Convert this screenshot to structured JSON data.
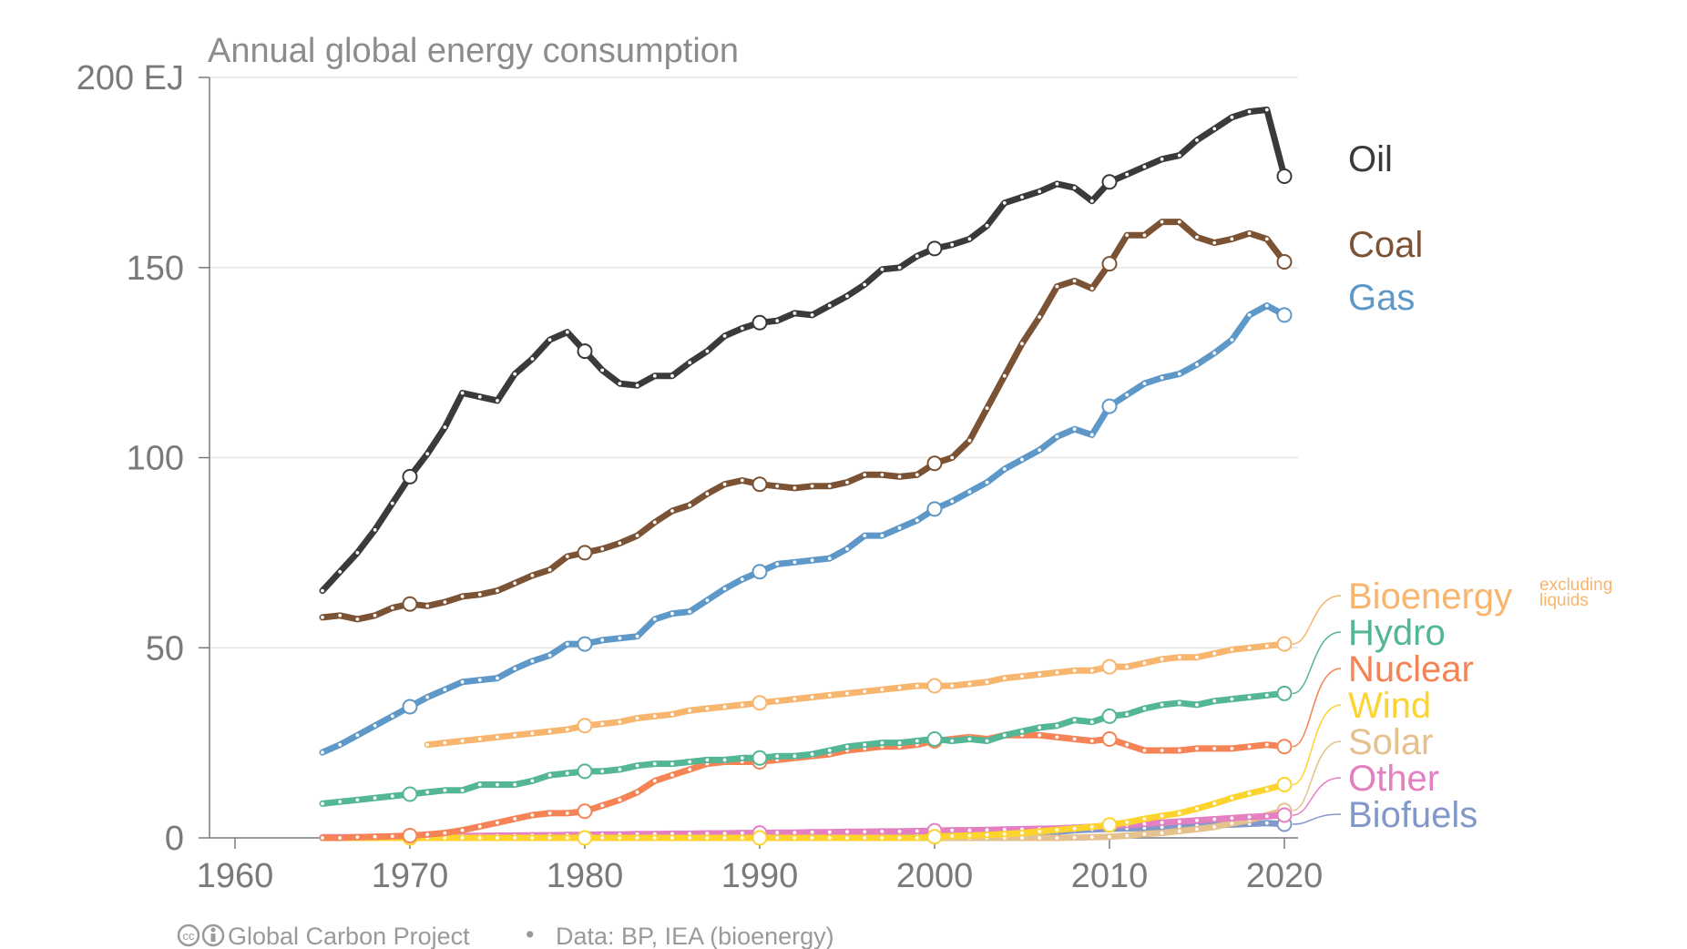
{
  "chart_data": {
    "type": "line",
    "title": "Annual global energy consumption",
    "xlabel": "",
    "ylabel": "",
    "xlim": [
      1957,
      1984
    ],
    "ylim": [
      0,
      200
    ],
    "x_ticks": [
      "1960",
      "1970",
      "1980",
      "1990",
      "2000",
      "2010",
      "2020"
    ],
    "y_ticks": [
      "0",
      "50",
      "100",
      "150",
      "200 EJ"
    ],
    "y_tick_values": [
      0,
      50,
      100,
      150,
      200
    ],
    "x_tick_values": [
      1960,
      1970,
      1980,
      1990,
      2000,
      2010,
      2020
    ],
    "grid": true,
    "legend": "inline-right",
    "footer": {
      "source_text": "Global Carbon Project",
      "separator": "•",
      "data_text": "Data: BP, IEA (bioenergy)",
      "license_icons": [
        "cc-icon",
        "by-icon"
      ]
    },
    "series": [
      {
        "name": "Oil",
        "color": "#3a3a3a",
        "start_year": 1965,
        "values": [
          65,
          70,
          75,
          81,
          88,
          95,
          101,
          108,
          117,
          116,
          115,
          122,
          126,
          131,
          133,
          128,
          123,
          119.5,
          119,
          121.5,
          121.5,
          125,
          128,
          132,
          134,
          135.5,
          136,
          138,
          137.5,
          140,
          142.5,
          145.5,
          149.5,
          150,
          153,
          155,
          156,
          157.5,
          161,
          167,
          168.5,
          170,
          172,
          171,
          167.5,
          172.5,
          174.5,
          176.5,
          178.5,
          179.5,
          183.5,
          186.5,
          189.5,
          191,
          191.5,
          174
        ],
        "markers": [
          1970,
          1980,
          1990,
          2000,
          2010,
          2020
        ]
      },
      {
        "name": "Coal",
        "color": "#7b5234",
        "start_year": 1965,
        "values": [
          58,
          58.5,
          57.5,
          58.5,
          60.5,
          61.5,
          61,
          62,
          63.5,
          64,
          65,
          67,
          69,
          70.5,
          74,
          75,
          76,
          77.5,
          79.5,
          83,
          86,
          87.5,
          90.5,
          93,
          94,
          93,
          92.5,
          92,
          92.5,
          92.5,
          93.5,
          95.5,
          95.5,
          95,
          95.5,
          98.5,
          100,
          104.5,
          113,
          121.5,
          130,
          137,
          145,
          146.5,
          144.5,
          151,
          158.5,
          158.5,
          162,
          162,
          158,
          156.5,
          157.5,
          159,
          157.5,
          151.5
        ],
        "markers": [
          1970,
          1980,
          1990,
          2000,
          2010,
          2020
        ]
      },
      {
        "name": "Gas",
        "color": "#5e98c8",
        "start_year": 1965,
        "values": [
          22.5,
          24.5,
          27,
          29.5,
          32,
          34.5,
          37,
          39,
          41,
          41.5,
          42,
          44.5,
          46.5,
          48,
          51,
          51,
          52,
          52.5,
          53,
          57.5,
          59,
          59.5,
          62.5,
          65.5,
          68,
          70,
          72,
          72.5,
          73,
          73.5,
          76,
          79.5,
          79.5,
          81.5,
          83.5,
          86.5,
          88.5,
          91,
          93.5,
          97,
          99.5,
          102,
          105.5,
          107.5,
          106,
          113.5,
          116.5,
          119.5,
          121,
          122,
          124.5,
          127.5,
          131,
          137.5,
          140,
          137.5
        ],
        "markers": [
          1970,
          1980,
          1990,
          2000,
          2010,
          2020
        ]
      },
      {
        "name": "Bioenergy",
        "note": "excluding liquids",
        "color": "#f7b56e",
        "start_year": 1971,
        "values": [
          24.5,
          25,
          25.5,
          26,
          26.5,
          27,
          27.5,
          28,
          28.5,
          29.5,
          30,
          30.5,
          31.5,
          32,
          32.5,
          33.5,
          34,
          34.5,
          35,
          35.5,
          36,
          36.5,
          37,
          37.5,
          38,
          38.5,
          39,
          39.5,
          40,
          40,
          40,
          40.5,
          41,
          42,
          42.5,
          43,
          43.5,
          44,
          44,
          45,
          45,
          46,
          47,
          47.5,
          47.5,
          48.5,
          49.5,
          50,
          50.5,
          51
        ],
        "markers": [
          1980,
          1990,
          2000,
          2010,
          2020
        ]
      },
      {
        "name": "Hydro",
        "color": "#53b694",
        "start_year": 1965,
        "values": [
          9,
          9.5,
          10,
          10.5,
          11,
          11.5,
          12,
          12.5,
          12.5,
          14,
          14,
          14,
          15,
          16.5,
          17,
          17.5,
          17.5,
          18,
          19,
          19.5,
          19.5,
          20,
          20.5,
          20.5,
          21,
          21,
          21.5,
          21.5,
          22,
          23,
          24,
          24.5,
          25,
          25,
          25.5,
          26,
          25.5,
          26,
          25.5,
          27,
          28,
          29,
          29.5,
          31,
          30.5,
          32,
          32.5,
          34,
          35,
          35.5,
          35,
          36,
          36.5,
          37,
          37.5,
          38
        ],
        "markers": [
          1970,
          1980,
          1990,
          2000,
          2010,
          2020
        ]
      },
      {
        "name": "Nuclear",
        "color": "#f58355",
        "start_year": 1965,
        "values": [
          0,
          0,
          0.2,
          0.3,
          0.4,
          0.6,
          0.9,
          1.3,
          2,
          3,
          4,
          5,
          6,
          6.5,
          6.5,
          7,
          8.5,
          10,
          12,
          15,
          16.5,
          18,
          19.5,
          20,
          20,
          20,
          20.5,
          21,
          21.5,
          22,
          23,
          23.5,
          24,
          24,
          24.5,
          25.5,
          26,
          26.5,
          26,
          27,
          27,
          27,
          26.5,
          26,
          25.5,
          26,
          24.5,
          23,
          23,
          23,
          23.5,
          23.5,
          23.5,
          24,
          24.5,
          24
        ],
        "markers": [
          1970,
          1980,
          1990,
          2000,
          2010,
          2020
        ]
      },
      {
        "name": "Wind",
        "color": "#fdd32d",
        "start_year": 1965,
        "values": [
          0,
          0,
          0,
          0,
          0,
          0,
          0,
          0,
          0,
          0,
          0,
          0,
          0,
          0,
          0,
          0,
          0,
          0,
          0,
          0,
          0,
          0,
          0,
          0,
          0,
          0,
          0,
          0,
          0,
          0,
          0,
          0,
          0,
          0,
          0,
          0.3,
          0.5,
          0.6,
          0.8,
          1,
          1.3,
          1.7,
          2.1,
          2.5,
          2.9,
          3.4,
          4.1,
          5,
          5.8,
          6.5,
          7.7,
          9,
          10.5,
          11.7,
          12.8,
          14
        ],
        "markers": [
          1970,
          1980,
          1990,
          2000,
          2010,
          2020
        ]
      },
      {
        "name": "Solar",
        "color": "#e5c18d",
        "start_year": 1965,
        "values": [
          0,
          0,
          0,
          0,
          0,
          0,
          0,
          0,
          0,
          0,
          0,
          0,
          0,
          0,
          0,
          0,
          0,
          0,
          0,
          0,
          0,
          0,
          0,
          0,
          0,
          0,
          0,
          0,
          0,
          0,
          0,
          0,
          0,
          0,
          0,
          0,
          0,
          0,
          0,
          0,
          0,
          0,
          0,
          0.1,
          0.2,
          0.3,
          0.6,
          1,
          1.3,
          1.8,
          2.3,
          2.9,
          3.8,
          4.7,
          6,
          7.2
        ],
        "markers": [
          2020
        ]
      },
      {
        "name": "Other",
        "color": "#e47fc1",
        "start_year": 1965,
        "values": [
          0.2,
          0.2,
          0.2,
          0.3,
          0.3,
          0.4,
          0.4,
          0.4,
          0.5,
          0.5,
          0.6,
          0.6,
          0.7,
          0.7,
          0.8,
          0.8,
          0.9,
          0.9,
          1,
          1,
          1.1,
          1.1,
          1.2,
          1.2,
          1.3,
          1.3,
          1.4,
          1.4,
          1.5,
          1.5,
          1.6,
          1.6,
          1.7,
          1.7,
          1.8,
          1.9,
          2,
          2,
          2.1,
          2.2,
          2.3,
          2.4,
          2.5,
          2.7,
          2.9,
          3.1,
          3.4,
          3.7,
          4,
          4.3,
          4.6,
          4.9,
          5.2,
          5.5,
          5.7,
          6
        ],
        "markers": [
          1990,
          2000,
          2020
        ]
      },
      {
        "name": "Biofuels",
        "color": "#8298c8",
        "start_year": 1965,
        "values": [
          0,
          0,
          0,
          0,
          0,
          0,
          0,
          0,
          0,
          0,
          0,
          0,
          0,
          0,
          0.1,
          0.2,
          0.3,
          0.4,
          0.5,
          0.5,
          0.6,
          0.6,
          0.6,
          0.6,
          0.6,
          0.6,
          0.6,
          0.6,
          0.6,
          0.6,
          0.6,
          0.6,
          0.6,
          0.6,
          0.6,
          0.6,
          0.7,
          0.8,
          0.9,
          1,
          1.2,
          1.4,
          1.6,
          2,
          2.2,
          2.4,
          2.5,
          2.6,
          2.8,
          3,
          3.2,
          3.3,
          3.5,
          3.7,
          3.9,
          3.6
        ],
        "markers": [
          2020
        ]
      }
    ]
  }
}
